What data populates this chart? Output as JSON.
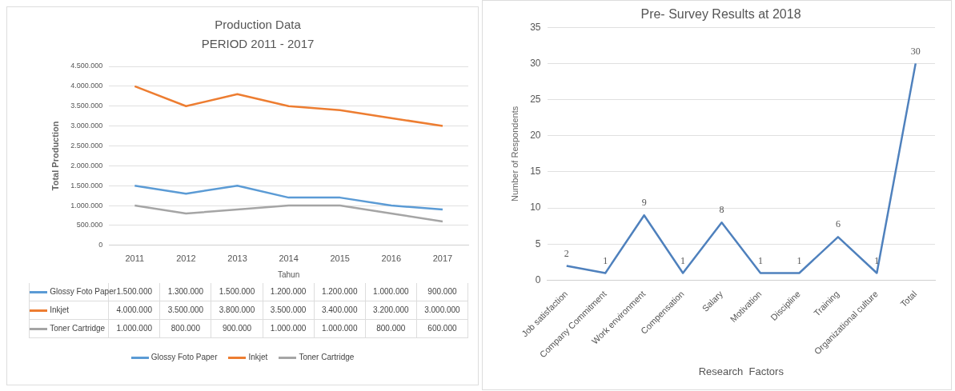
{
  "chart_data": [
    {
      "type": "line",
      "title": "Production Data",
      "subtitle": "PERIOD 2011 - 2017",
      "xlabel": "Tahun",
      "ylabel": "Total Production",
      "categories": [
        "2011",
        "2012",
        "2013",
        "2014",
        "2015",
        "2016",
        "2017"
      ],
      "series": [
        {
          "name": "Glossy Foto Paper",
          "color": "#5b9bd5",
          "values": [
            1500000,
            1300000,
            1500000,
            1200000,
            1200000,
            1000000,
            900000
          ],
          "value_labels": [
            "1.500.000",
            "1.300.000",
            "1.500.000",
            "1.200.000",
            "1.200.000",
            "1.000.000",
            "900.000"
          ]
        },
        {
          "name": "Inkjet",
          "color": "#ed7d31",
          "values": [
            4000000,
            3500000,
            3800000,
            3500000,
            3400000,
            3200000,
            3000000
          ],
          "value_labels": [
            "4.000.000",
            "3.500.000",
            "3.800.000",
            "3.500.000",
            "3.400.000",
            "3.200.000",
            "3.000.000"
          ]
        },
        {
          "name": "Toner Cartridge",
          "color": "#a5a5a5",
          "values": [
            1000000,
            800000,
            900000,
            1000000,
            1000000,
            800000,
            600000
          ],
          "value_labels": [
            "1.000.000",
            "800.000",
            "900.000",
            "1.000.000",
            "1.000.000",
            "800.000",
            "600.000"
          ]
        }
      ],
      "ylim": [
        0,
        4500000
      ],
      "yticks": [
        0,
        {
          "value": 500000,
          "label": "500.000"
        },
        {
          "value": 1000000,
          "label": "1.000.000"
        },
        {
          "value": 1500000,
          "label": "1.500.000"
        },
        {
          "value": 2000000,
          "label": "2.000.000"
        },
        {
          "value": 2500000,
          "label": "2.500.000"
        },
        {
          "value": 3000000,
          "label": "3.000.000"
        },
        {
          "value": 3500000,
          "label": "3.500.000"
        },
        {
          "value": 4000000,
          "label": "4.000.000"
        },
        {
          "value": 4500000,
          "label": "4.500.000"
        }
      ],
      "grid": "y",
      "legend": "bottom",
      "marker": "none"
    },
    {
      "type": "line",
      "title": "Pre- Survey Results at 2018",
      "xlabel": "Research  Factors",
      "ylabel": "Number of Respondents",
      "categories": [
        "Job satisfaction",
        "Company Commitment",
        "Work environment",
        "Compensation",
        "Salary",
        "Motivation",
        "Discipline",
        "Training",
        "Organizational culture",
        "Total"
      ],
      "series": [
        {
          "color": "#4f81bd",
          "values": [
            2,
            1,
            9,
            1,
            8,
            1,
            1,
            6,
            1,
            30
          ]
        }
      ],
      "ylim": [
        0,
        35
      ],
      "yticks": [
        0,
        5,
        10,
        15,
        20,
        25,
        30,
        35
      ],
      "grid": "y",
      "marker": "none",
      "data_labels": true
    }
  ]
}
